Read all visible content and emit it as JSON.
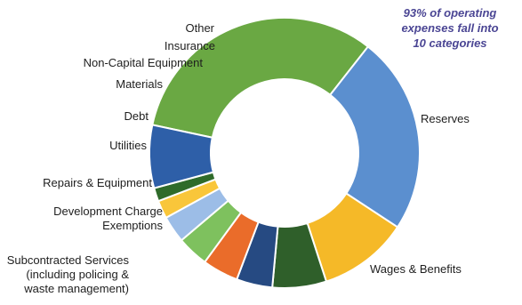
{
  "chart_data": {
    "type": "pie",
    "donut": true,
    "title": "",
    "annotation": {
      "lines": [
        "93% of operating",
        "expenses fall into",
        "10 categories"
      ]
    },
    "slices": [
      {
        "label": "Reserves",
        "lines": [
          "Reserves"
        ],
        "value": 30,
        "color": "#6aa843"
      },
      {
        "label": "Wages & Benefits",
        "lines": [
          "Wages & Benefits"
        ],
        "value": 22,
        "color": "#5b8fcf"
      },
      {
        "label": "Subcontracted Services (including policing & waste management)",
        "lines": [
          "Subcontracted Services",
          "(including policing &",
          "waste management)"
        ],
        "value": 10,
        "color": "#f5b928"
      },
      {
        "label": "Development Charge Exemptions",
        "lines": [
          "Development Charge",
          "Exemptions"
        ],
        "value": 6,
        "color": "#2f5f2a"
      },
      {
        "label": "Repairs & Equipment",
        "lines": [
          "Repairs & Equipment"
        ],
        "value": 4,
        "color": "#264a82"
      },
      {
        "label": "Utilities",
        "lines": [
          "Utilities"
        ],
        "value": 4,
        "color": "#ea6c2a"
      },
      {
        "label": "Debt",
        "lines": [
          "Debt"
        ],
        "value": 3.5,
        "color": "#7ec15e"
      },
      {
        "label": "Materials",
        "lines": [
          "Materials"
        ],
        "value": 3,
        "color": "#9cbde7"
      },
      {
        "label": "Non-Capital Equipment",
        "lines": [
          "Non-Capital Equipment"
        ],
        "value": 2,
        "color": "#f9c63a"
      },
      {
        "label": "Insurance",
        "lines": [
          "Insurance"
        ],
        "value": 1.5,
        "color": "#2f6b2a"
      },
      {
        "label": "Other",
        "lines": [
          "Other"
        ],
        "value": 7,
        "color": "#2e5fa8"
      }
    ],
    "legend": "none"
  }
}
